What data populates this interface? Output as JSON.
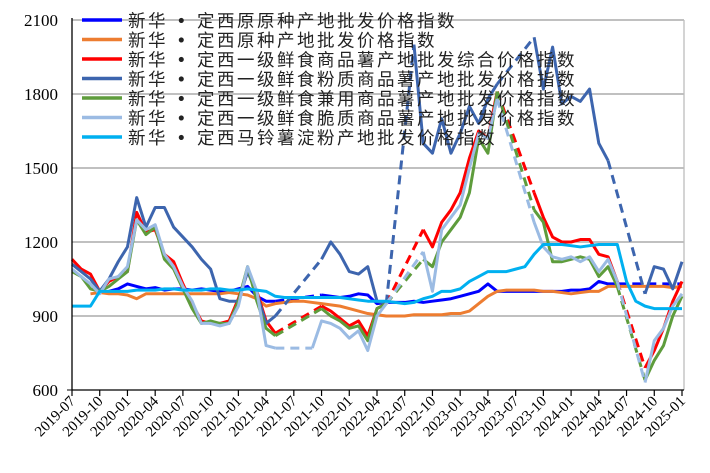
{
  "chart_data": {
    "type": "line",
    "title": "",
    "xlabel": "",
    "ylabel": "",
    "ylim": [
      600,
      2100
    ],
    "yticks": [
      "600",
      "900",
      "1200",
      "1500",
      "1800",
      "2100"
    ],
    "xticks": [
      "2019-07",
      "2019-10",
      "2020-01",
      "2020-04",
      "2020-07",
      "2020-10",
      "2021-01",
      "2021-04",
      "2021-07",
      "2021-10",
      "2022-01",
      "2022-04",
      "2022-07",
      "2022-10",
      "2023-01",
      "2023-04",
      "2023-07",
      "2023-10",
      "2024-01",
      "2024-04",
      "2024-07",
      "2024-10",
      "2025-01"
    ],
    "x_start": "2019-07",
    "x_step": "month",
    "grid": true,
    "legend_position": "top-left",
    "gap_style": "dashed",
    "series": [
      {
        "name": "新华 • 定西原原种产地批发价格指数",
        "color": "#0000FF",
        "values": [
          null,
          null,
          null,
          null,
          1000,
          1010,
          1030,
          1020,
          1010,
          1015,
          1005,
          1010,
          1010,
          1005,
          1010,
          1005,
          1000,
          1000,
          1010,
          1020,
          980,
          960,
          960,
          null,
          null,
          null,
          null,
          985,
          980,
          975,
          980,
          990,
          985,
          950,
          955,
          955,
          955,
          960,
          955,
          960,
          965,
          970,
          980,
          990,
          1000,
          1030,
          1000,
          1000,
          1000,
          1000,
          1000,
          1000,
          1000,
          1000,
          1005,
          1005,
          1010,
          1040,
          1030,
          1030,
          null,
          null,
          null,
          null,
          null,
          null,
          1030
        ]
      },
      {
        "name": "新华 • 定西原种产地批发价格指数",
        "color": "#ED7D31",
        "values": [
          null,
          null,
          990,
          995,
          990,
          990,
          985,
          970,
          990,
          990,
          990,
          990,
          990,
          990,
          990,
          990,
          990,
          995,
          990,
          985,
          970,
          940,
          950,
          955,
          960,
          960,
          955,
          950,
          945,
          940,
          930,
          920,
          910,
          905,
          900,
          900,
          900,
          905,
          905,
          905,
          905,
          910,
          910,
          920,
          950,
          980,
          1000,
          1005,
          1005,
          1005,
          1005,
          1000,
          1000,
          995,
          990,
          995,
          1000,
          1000,
          1020,
          1020,
          1020,
          1020,
          1020,
          1020,
          1020,
          1015,
          1020
        ]
      },
      {
        "name": "新华 • 定西一级鲜食商品薯产地批发综合价格指数",
        "color": "#FF0000",
        "values": [
          1130,
          1090,
          1070,
          1000,
          1040,
          1060,
          1080,
          1320,
          1240,
          1250,
          1150,
          1120,
          1030,
          950,
          880,
          870,
          870,
          880,
          970,
          1080,
          1000,
          880,
          830,
          null,
          null,
          null,
          null,
          940,
          920,
          890,
          860,
          880,
          820,
          930,
          950,
          null,
          null,
          null,
          1250,
          1180,
          1280,
          1330,
          1400,
          1540,
          1650,
          1620,
          1810,
          null,
          null,
          null,
          1400,
          1300,
          1220,
          1200,
          1200,
          1210,
          1210,
          1150,
          1140,
          1040,
          null,
          null,
          690,
          760,
          850,
          960,
          1040
        ]
      },
      {
        "name": "新华 • 定西一级鲜食粉质商品薯产地批发价格指数",
        "color": "#3D65AE",
        "values": [
          1110,
          1080,
          1050,
          1000,
          1050,
          1120,
          1180,
          1380,
          1260,
          1340,
          1340,
          1260,
          1220,
          1180,
          1130,
          1090,
          970,
          960,
          960,
          1080,
          990,
          870,
          900,
          null,
          null,
          null,
          null,
          1130,
          1200,
          1150,
          1080,
          1070,
          1100,
          960,
          950,
          null,
          null,
          2000,
          1600,
          1560,
          1700,
          1560,
          1640,
          1750,
          1680,
          1780,
          1840,
          null,
          null,
          null,
          2030,
          1820,
          1990,
          1760,
          1790,
          1770,
          1820,
          1600,
          1530,
          null,
          null,
          null,
          990,
          1100,
          1090,
          1010,
          1120
        ]
      },
      {
        "name": "新华 • 定西一级鲜食兼用商品薯产地批发价格指数",
        "color": "#5E9C3C",
        "values": [
          1080,
          1060,
          1010,
          1000,
          1020,
          1050,
          1080,
          1290,
          1230,
          1260,
          1130,
          1090,
          1010,
          930,
          870,
          880,
          870,
          870,
          960,
          1100,
          960,
          850,
          820,
          null,
          null,
          null,
          null,
          930,
          900,
          880,
          850,
          860,
          800,
          930,
          950,
          null,
          null,
          null,
          1130,
          1100,
          1200,
          1250,
          1300,
          1400,
          1620,
          1560,
          1810,
          null,
          null,
          null,
          1330,
          1280,
          1120,
          1120,
          1130,
          1140,
          1130,
          1060,
          1100,
          1020,
          null,
          null,
          640,
          720,
          780,
          900,
          980
        ]
      },
      {
        "name": "新华 • 定西一级鲜食脆质商品薯产地批发价格指数",
        "color": "#9BBBE3",
        "values": [
          1090,
          1060,
          1030,
          990,
          1050,
          1060,
          1100,
          1290,
          1250,
          1270,
          1150,
          1100,
          1020,
          960,
          870,
          870,
          860,
          870,
          940,
          1100,
          1000,
          780,
          770,
          null,
          null,
          null,
          770,
          880,
          870,
          850,
          810,
          840,
          760,
          900,
          950,
          null,
          null,
          null,
          1160,
          1000,
          1250,
          1300,
          1350,
          1500,
          1640,
          1620,
          1780,
          null,
          null,
          null,
          1280,
          1180,
          1140,
          1130,
          1140,
          1120,
          1140,
          1080,
          1130,
          1040,
          null,
          null,
          630,
          800,
          850,
          940,
          990
        ]
      },
      {
        "name": "新华 • 定西马铃薯淀粉产地批发价格指数",
        "color": "#00B0F0",
        "values": [
          940,
          940,
          940,
          1000,
          1000,
          1000,
          1000,
          1005,
          1005,
          1005,
          1010,
          1010,
          1005,
          1005,
          1005,
          1010,
          1010,
          1005,
          1005,
          1010,
          1005,
          1000,
          980,
          975,
          975,
          975,
          975,
          975,
          975,
          975,
          970,
          965,
          960,
          960,
          960,
          955,
          950,
          955,
          970,
          980,
          1000,
          1000,
          1010,
          1040,
          1060,
          1080,
          1080,
          1080,
          1090,
          1100,
          1150,
          1190,
          1190,
          1190,
          1185,
          1180,
          1185,
          1190,
          1190,
          1190,
          1040,
          960,
          940,
          930,
          930,
          930,
          930
        ]
      }
    ]
  }
}
